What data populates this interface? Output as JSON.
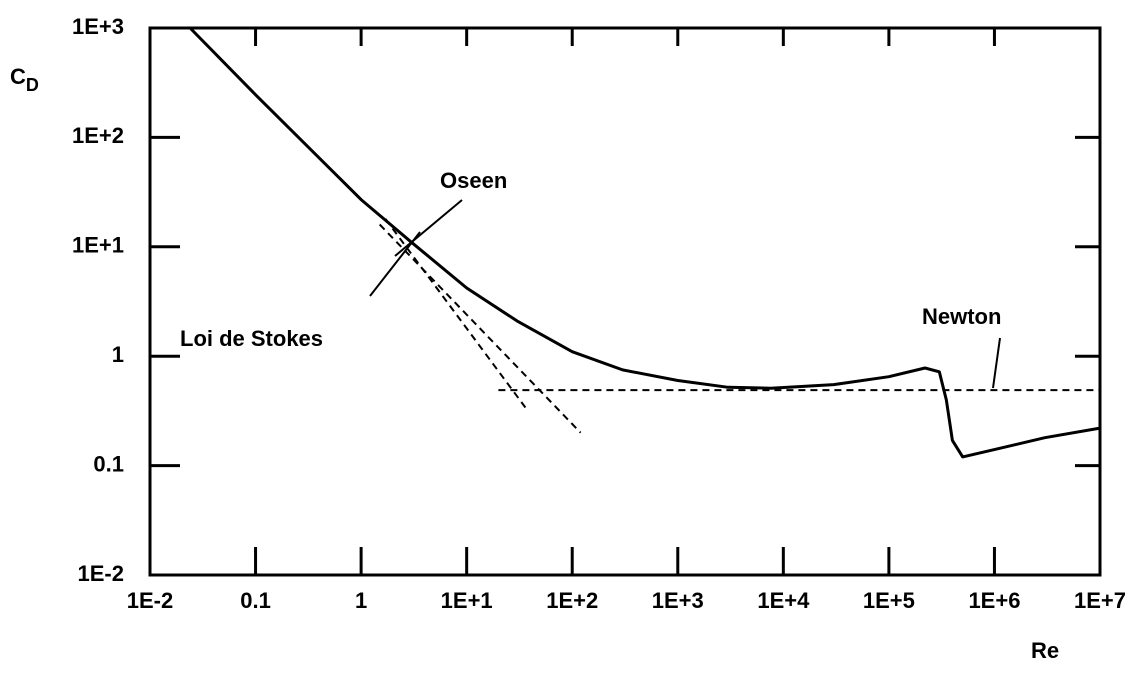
{
  "chart_data": {
    "type": "line",
    "xlabel": "Re",
    "ylabel": {
      "text": "C",
      "subscript": "D"
    },
    "xscale": "log",
    "yscale": "log",
    "xlim": [
      0.01,
      10000000
    ],
    "ylim": [
      0.01,
      1000
    ],
    "xticks": [
      {
        "value": 0.01,
        "label": "1E-2"
      },
      0.1,
      1,
      {
        "value": 10,
        "label": "1E+1"
      },
      {
        "value": 100,
        "label": "1E+2"
      },
      {
        "value": 1000,
        "label": "1E+3"
      },
      {
        "value": 10000,
        "label": "1E+4"
      },
      {
        "value": 100000,
        "label": "1E+5"
      },
      {
        "value": 1000000,
        "label": "1E+6"
      },
      {
        "value": 10000000,
        "label": "1E+7"
      }
    ],
    "yticks": [
      {
        "value": 0.01,
        "label": "1E-2"
      },
      0.1,
      1,
      {
        "value": 10,
        "label": "1E+1"
      },
      {
        "value": 100,
        "label": "1E+2"
      },
      {
        "value": 1000,
        "label": "1E+3"
      }
    ],
    "series": [
      {
        "color": "#000000",
        "line_style": "solid",
        "x": [
          0.024,
          0.1,
          1,
          3,
          10,
          30,
          100,
          300,
          1000,
          3000,
          7600,
          30000,
          100000,
          220000,
          300000,
          350000,
          400000,
          500000,
          1000000,
          3000000,
          10000000
        ],
        "values": [
          1000,
          245,
          27,
          11,
          4.2,
          2.1,
          1.1,
          0.75,
          0.6,
          0.52,
          0.51,
          0.55,
          0.65,
          0.78,
          0.72,
          0.4,
          0.17,
          0.12,
          0.14,
          0.18,
          0.22
        ]
      },
      {
        "name": "Oseen",
        "color": "#000000",
        "line_style": "dashed",
        "x": [
          1.7,
          36
        ],
        "values": [
          18,
          0.34
        ]
      },
      {
        "name": "Loi de Stokes",
        "color": "#000000",
        "line_style": "dashed",
        "x": [
          1.5,
          120
        ],
        "values": [
          16,
          0.2
        ]
      },
      {
        "name": "Newton",
        "color": "#000000",
        "line_style": "dashed",
        "x": [
          20,
          10000000
        ],
        "values": [
          0.49,
          0.49
        ]
      }
    ]
  }
}
